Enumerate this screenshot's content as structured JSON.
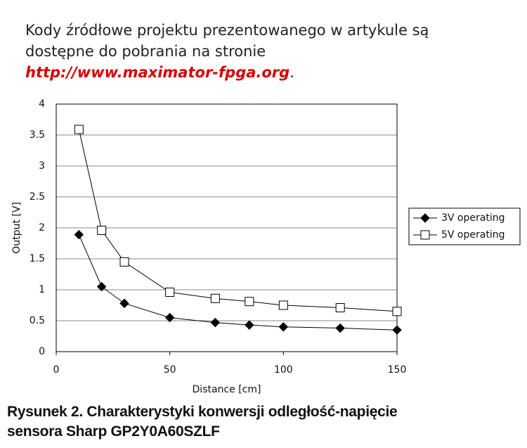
{
  "intro": {
    "lines": [
      "Kody źródłowe projektu prezentowanego w artykule są",
      "dostępne do pobrania na stronie"
    ],
    "link": "http://www.maximator-fpga.org",
    "end": "."
  },
  "caption": {
    "lines": [
      "Rysunek 2. Charakterystyki konwersji odległość-napięcie",
      "sensora Sharp GP2Y0A60SZLF"
    ]
  },
  "chart_data": {
    "type": "line",
    "x_label": "Distance [cm]",
    "y_label": "Output [V]",
    "x": [
      10,
      20,
      30,
      50,
      70,
      85,
      100,
      125,
      150
    ],
    "series": [
      {
        "name": "3V operating",
        "color": "#000000",
        "marker": "diamond",
        "filled": true,
        "values": [
          1.89,
          1.05,
          0.78,
          0.55,
          0.47,
          0.43,
          0.4,
          0.38,
          0.35
        ]
      },
      {
        "name": "5V operating",
        "color": "#000000",
        "marker": "square",
        "filled": false,
        "values": [
          3.59,
          1.96,
          1.45,
          0.96,
          0.86,
          0.81,
          0.75,
          0.71,
          0.65
        ]
      }
    ],
    "xlim": [
      0,
      150
    ],
    "ylim": [
      0,
      4
    ],
    "xticks": [
      0,
      50,
      100,
      150
    ],
    "yticks": [
      0,
      0.5,
      1,
      1.5,
      2,
      2.5,
      3,
      3.5,
      4
    ],
    "grid": true,
    "legend": "right"
  }
}
